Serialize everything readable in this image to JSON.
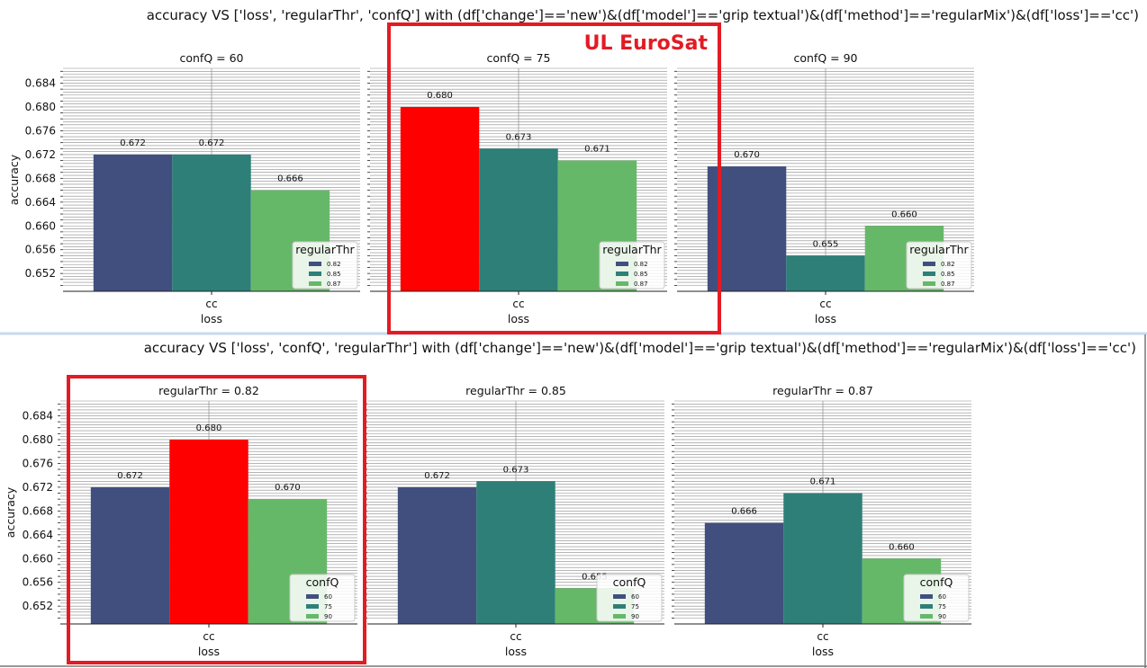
{
  "annotation_label": "UL EuroSat",
  "palette": {
    "c0": "#414f7f",
    "c1": "#2e7f78",
    "c2": "#66b869",
    "highlight": "#ff0000",
    "box": "#e31b23"
  },
  "chart_data": [
    {
      "type": "bar",
      "title": "accuracy VS ['loss', 'regularThr', 'confQ'] with (df['change']=='new')&(df['model']=='grip textual')&(df['method']=='regularMix')&(df['loss']=='cc')",
      "ylabel": "accuracy",
      "ylim": [
        0.649,
        0.6865
      ],
      "yticks": [
        "0.684",
        "0.680",
        "0.676",
        "0.672",
        "0.668",
        "0.664",
        "0.660",
        "0.656",
        "0.652"
      ],
      "legend_title": "regularThr",
      "legend_position": "lower-right",
      "legend_entries": [
        "0.82",
        "0.85",
        "0.87"
      ],
      "highlighted_panel": 1,
      "panels": [
        {
          "title": "confQ = 60",
          "xlabel": "loss",
          "category": "cc",
          "values": [
            0.672,
            0.672,
            0.666
          ],
          "value_labels": [
            "0.672",
            "0.672",
            "0.666"
          ],
          "highlight_bar": -1
        },
        {
          "title": "confQ = 75",
          "xlabel": "loss",
          "category": "cc",
          "values": [
            0.68,
            0.673,
            0.671
          ],
          "value_labels": [
            "0.680",
            "0.673",
            "0.671"
          ],
          "highlight_bar": 0
        },
        {
          "title": "confQ = 90",
          "xlabel": "loss",
          "category": "cc",
          "values": [
            0.67,
            0.655,
            0.66
          ],
          "value_labels": [
            "0.670",
            "0.655",
            "0.660"
          ],
          "highlight_bar": -1
        }
      ]
    },
    {
      "type": "bar",
      "title": "accuracy VS ['loss', 'confQ', 'regularThr'] with (df['change']=='new')&(df['model']=='grip textual')&(df['method']=='regularMix')&(df['loss']=='cc')",
      "ylabel": "accuracy",
      "ylim": [
        0.649,
        0.6865
      ],
      "yticks": [
        "0.684",
        "0.680",
        "0.676",
        "0.672",
        "0.668",
        "0.664",
        "0.660",
        "0.656",
        "0.652"
      ],
      "legend_title": "confQ",
      "legend_position": "lower-right",
      "legend_entries": [
        "60",
        "75",
        "90"
      ],
      "highlighted_panel": 0,
      "panels": [
        {
          "title": "regularThr = 0.82",
          "xlabel": "loss",
          "category": "cc",
          "values": [
            0.672,
            0.68,
            0.67
          ],
          "value_labels": [
            "0.672",
            "0.680",
            "0.670"
          ],
          "highlight_bar": 1
        },
        {
          "title": "regularThr = 0.85",
          "xlabel": "loss",
          "category": "cc",
          "values": [
            0.672,
            0.673,
            0.655
          ],
          "value_labels": [
            "0.672",
            "0.673",
            "0.655"
          ],
          "highlight_bar": -1
        },
        {
          "title": "regularThr = 0.87",
          "xlabel": "loss",
          "category": "cc",
          "values": [
            0.666,
            0.671,
            0.66
          ],
          "value_labels": [
            "0.666",
            "0.671",
            "0.660"
          ],
          "highlight_bar": -1
        }
      ]
    }
  ]
}
